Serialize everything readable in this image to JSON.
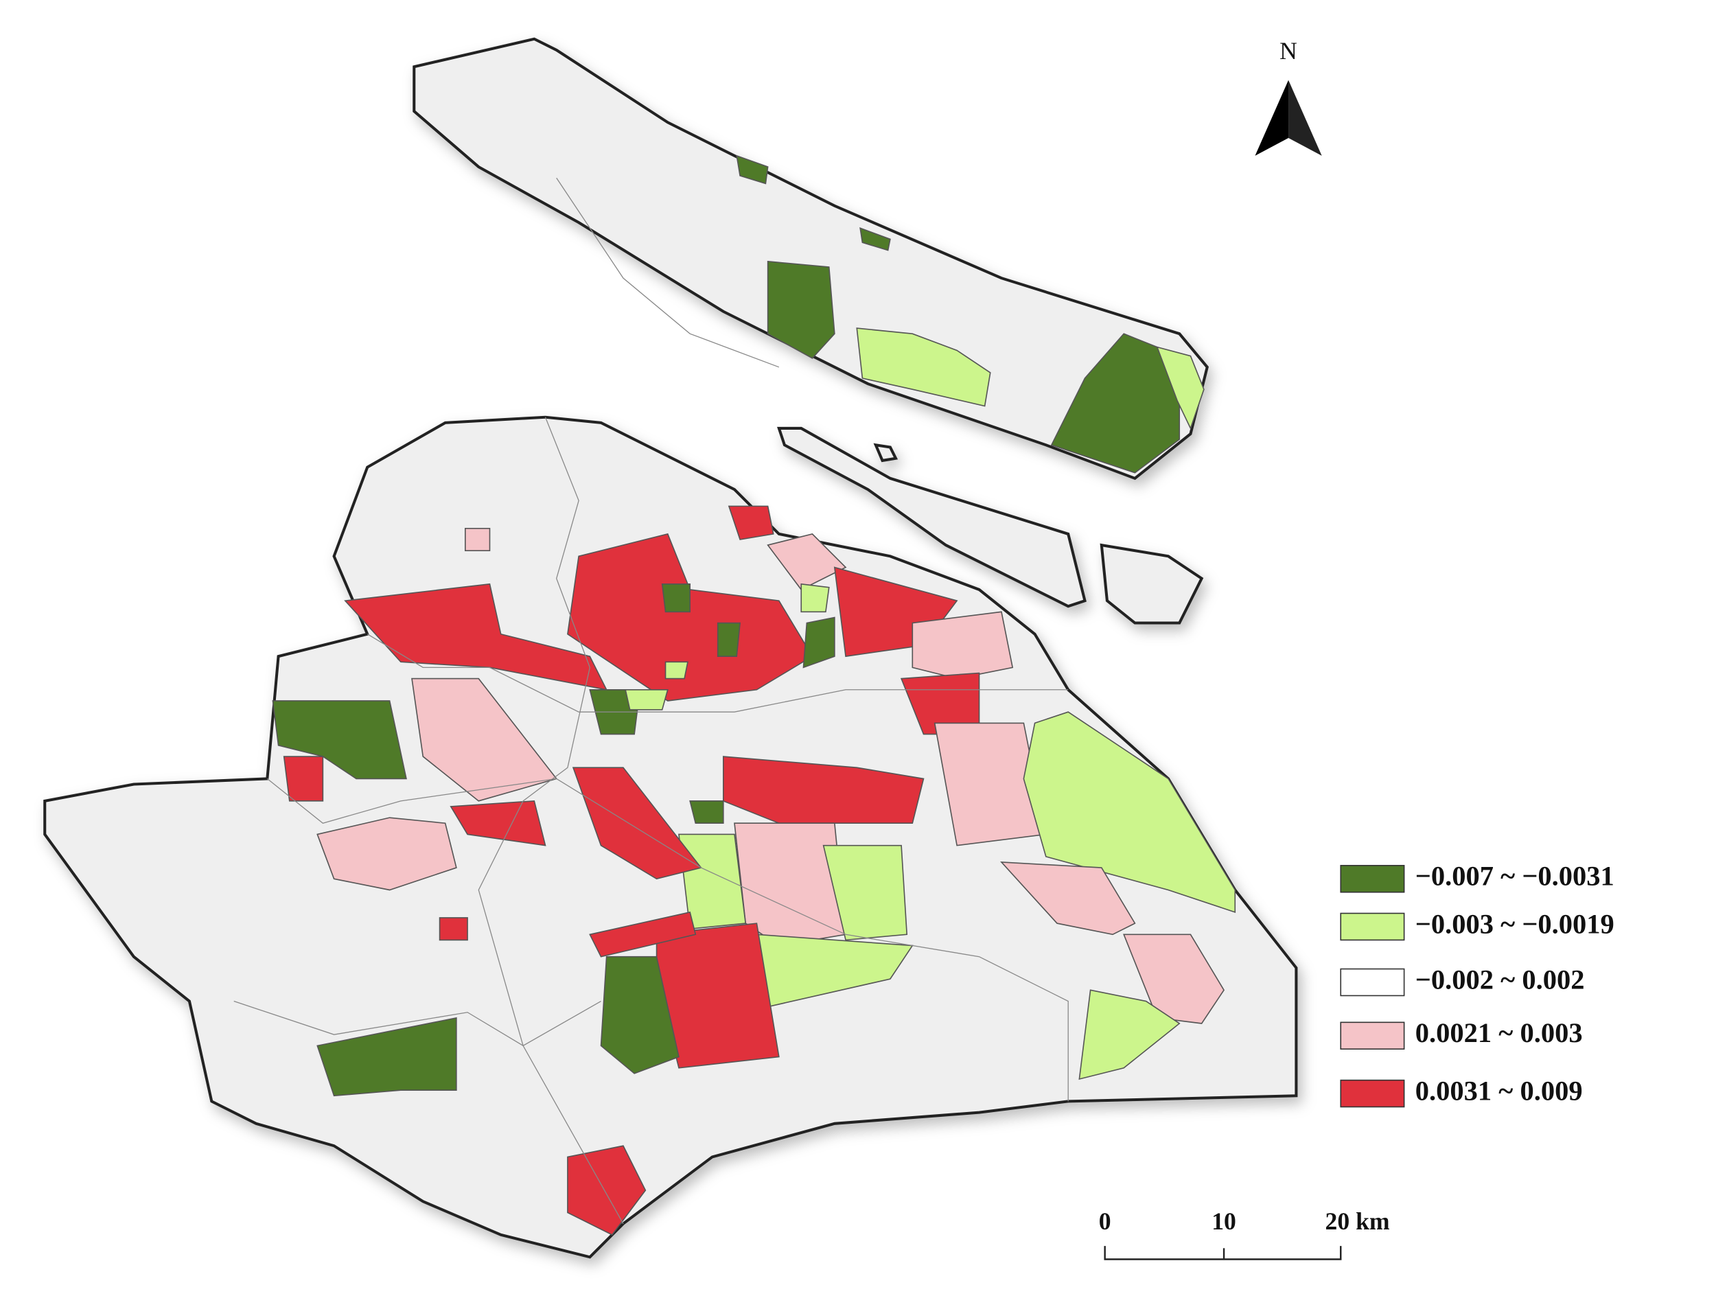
{
  "north_label": "N",
  "legend": {
    "items": [
      {
        "label": "−0.007 ~ −0.0031",
        "color": "#4f7a28"
      },
      {
        "label": "−0.003 ~ −0.0019",
        "color": "#ccf58c"
      },
      {
        "label": "−0.002 ~ 0.002",
        "color": "#ffffff"
      },
      {
        "label": "0.0021 ~ 0.003",
        "color": "#f5c4c8"
      },
      {
        "label": "0.0031 ~ 0.009",
        "color": "#e0313c"
      }
    ]
  },
  "scale_bar": {
    "labels": [
      "0",
      "10",
      "20 km"
    ]
  }
}
